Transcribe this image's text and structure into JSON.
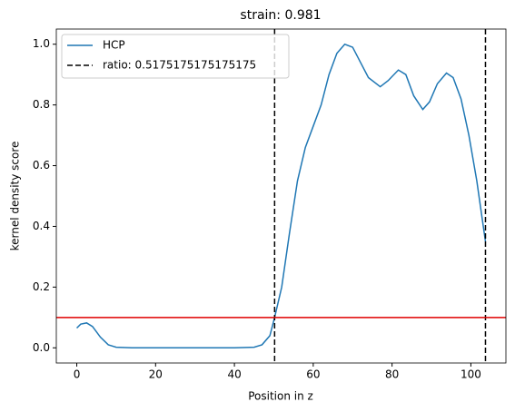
{
  "chart_data": {
    "type": "line",
    "title": "strain: 0.981",
    "xlabel": "Position in z",
    "ylabel": "kernel density score",
    "x": [
      0,
      1,
      2.5,
      4,
      6,
      8,
      10,
      14,
      20,
      30,
      40,
      45,
      47,
      49,
      50.2,
      52,
      54,
      56,
      58,
      60,
      62,
      64,
      66,
      68,
      70,
      72,
      74,
      77,
      79,
      81.6,
      83.5,
      85.5,
      87.8,
      89.5,
      91.5,
      93.8,
      95.5,
      97.5,
      99.5,
      101.5,
      103.7
    ],
    "series": [
      {
        "name": "HCP",
        "color": "#1f77b4",
        "values": [
          0.065,
          0.078,
          0.082,
          0.07,
          0.035,
          0.01,
          0.002,
          0,
          0,
          0,
          0,
          0.002,
          0.01,
          0.04,
          0.1,
          0.2,
          0.38,
          0.55,
          0.66,
          0.73,
          0.8,
          0.9,
          0.97,
          1.0,
          0.99,
          0.94,
          0.89,
          0.86,
          0.88,
          0.915,
          0.9,
          0.83,
          0.785,
          0.81,
          0.87,
          0.905,
          0.89,
          0.82,
          0.7,
          0.55,
          0.35
        ]
      }
    ],
    "vlines": {
      "name": "ratio: 0.5175175175175175",
      "color": "#000000",
      "x": [
        50.2,
        103.7
      ]
    },
    "hline": {
      "y": 0.1,
      "color": "#e00000"
    },
    "xlim": [
      -5.19,
      108.89
    ],
    "ylim": [
      -0.05,
      1.05
    ],
    "xticks": [
      0,
      20,
      40,
      60,
      80,
      100
    ],
    "yticks": [
      {
        "value": 0,
        "label": "0.0"
      },
      0.2,
      0.4,
      0.6,
      0.8,
      {
        "value": 1,
        "label": "1.0"
      }
    ],
    "legend": "upper left"
  }
}
